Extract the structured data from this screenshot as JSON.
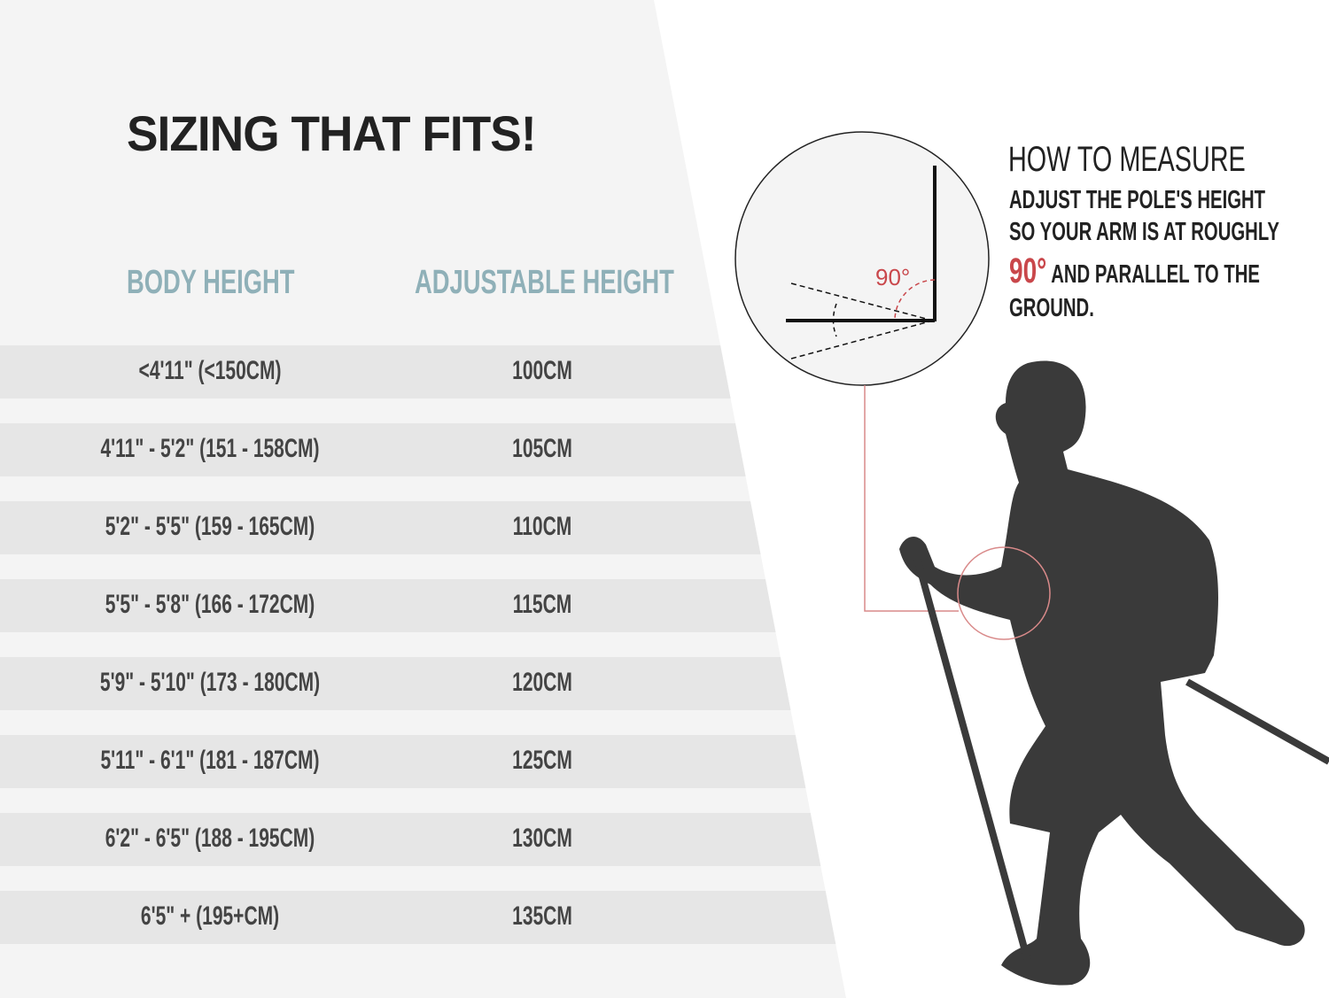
{
  "title": "SIZING THAT FITS!",
  "table": {
    "headers": [
      "BODY HEIGHT",
      "ADJUSTABLE HEIGHT"
    ],
    "rows": [
      [
        "<4'11\" (<150CM)",
        "100CM"
      ],
      [
        "4'11\" - 5'2\" (151 - 158CM)",
        "105CM"
      ],
      [
        "5'2\" - 5'5\" (159 - 165CM)",
        "110CM"
      ],
      [
        "5'5\" - 5'8\" (166 - 172CM)",
        "115CM"
      ],
      [
        "5'9\" - 5'10\" (173 - 180CM)",
        "120CM"
      ],
      [
        "5'11\" - 6'1\" (181 - 187CM)",
        "125CM"
      ],
      [
        "6'2\" - 6'5\" (188 - 195CM)",
        "130CM"
      ],
      [
        "6'5\" + (195+CM)",
        "135CM"
      ]
    ]
  },
  "measure": {
    "heading": "HOW TO MEASURE",
    "line1": "ADJUST THE POLE'S HEIGHT",
    "line2": "SO YOUR ARM IS AT ROUGHLY",
    "angle": "90°",
    "line3": "AND PARALLEL TO THE",
    "line4": "GROUND.",
    "diagram_angle": "90°"
  },
  "colors": {
    "accent": "#c9474b",
    "header": "#8fb0b8",
    "silhouette": "#3a3a3a"
  }
}
